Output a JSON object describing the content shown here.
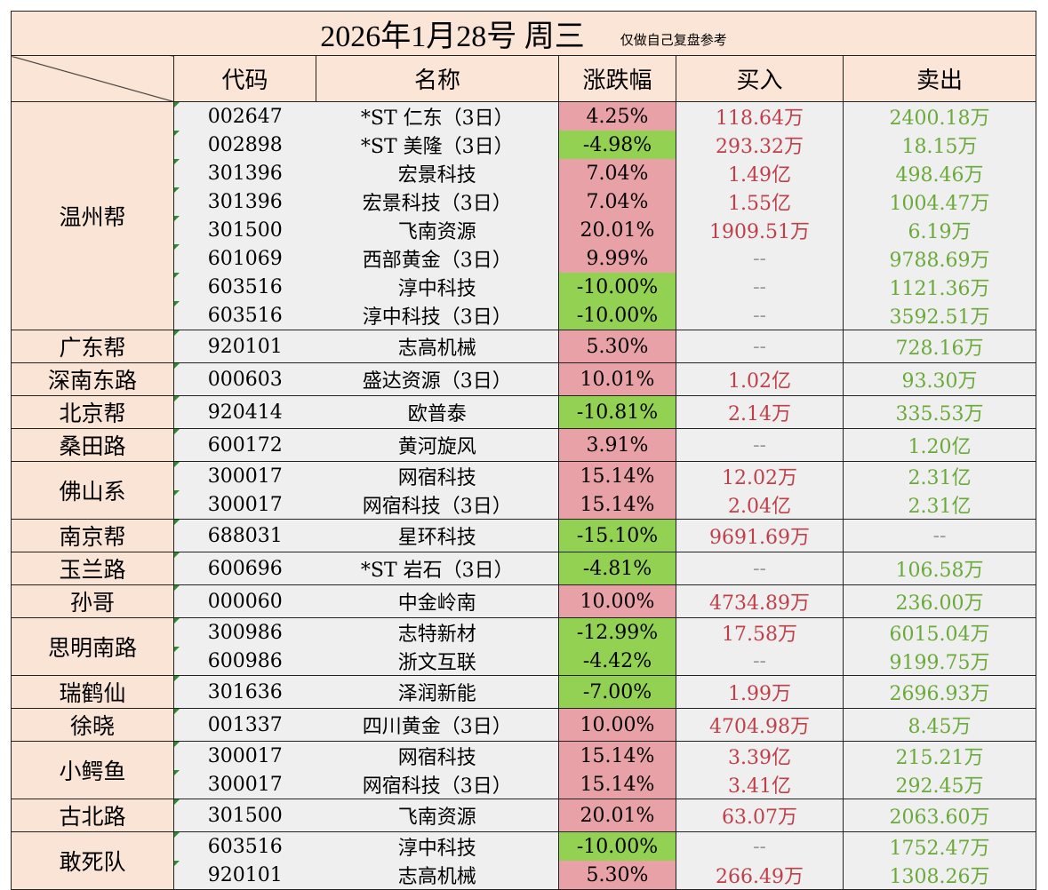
{
  "title": "2026年1月28号 周三",
  "note": "仅做自己复盘参考",
  "headers": {
    "code": "代码",
    "name": "名称",
    "pct": "涨跌幅",
    "buy": "买入",
    "sell": "卖出"
  },
  "colors": {
    "up_bg": "#e8a1a6",
    "down_bg": "#93d152",
    "buy_text": "#c0404a",
    "sell_text": "#6aaa3a",
    "header_bg": "#fbe5d6"
  },
  "groups": [
    {
      "name": "温州帮",
      "rows": [
        {
          "code": "002647",
          "name": "*ST 仁东（3日）",
          "pct": "4.25%",
          "buy": "118.64万",
          "sell": "2400.18万"
        },
        {
          "code": "002898",
          "name": "*ST 美隆（3日）",
          "pct": "-4.98%",
          "buy": "293.32万",
          "sell": "18.15万"
        },
        {
          "code": "301396",
          "name": "宏景科技",
          "pct": "7.04%",
          "buy": "1.49亿",
          "sell": "498.46万"
        },
        {
          "code": "301396",
          "name": "宏景科技（3日）",
          "pct": "7.04%",
          "buy": "1.55亿",
          "sell": "1004.47万"
        },
        {
          "code": "301500",
          "name": "飞南资源",
          "pct": "20.01%",
          "buy": "1909.51万",
          "sell": "6.19万"
        },
        {
          "code": "601069",
          "name": "西部黄金（3日）",
          "pct": "9.99%",
          "buy": "--",
          "sell": "9788.69万"
        },
        {
          "code": "603516",
          "name": "淳中科技",
          "pct": "-10.00%",
          "buy": "--",
          "sell": "1121.36万"
        },
        {
          "code": "603516",
          "name": "淳中科技（3日）",
          "pct": "-10.00%",
          "buy": "--",
          "sell": "3592.51万"
        }
      ]
    },
    {
      "name": "广东帮",
      "rows": [
        {
          "code": "920101",
          "name": "志高机械",
          "pct": "5.30%",
          "buy": "--",
          "sell": "728.16万"
        }
      ]
    },
    {
      "name": "深南东路",
      "rows": [
        {
          "code": "000603",
          "name": "盛达资源（3日）",
          "pct": "10.01%",
          "buy": "1.02亿",
          "sell": "93.30万"
        }
      ]
    },
    {
      "name": "北京帮",
      "rows": [
        {
          "code": "920414",
          "name": "欧普泰",
          "pct": "-10.81%",
          "buy": "2.14万",
          "sell": "335.53万"
        }
      ]
    },
    {
      "name": "桑田路",
      "rows": [
        {
          "code": "600172",
          "name": "黄河旋风",
          "pct": "3.91%",
          "buy": "--",
          "sell": "1.20亿"
        }
      ]
    },
    {
      "name": "佛山系",
      "rows": [
        {
          "code": "300017",
          "name": "网宿科技",
          "pct": "15.14%",
          "buy": "12.02万",
          "sell": "2.31亿"
        },
        {
          "code": "300017",
          "name": "网宿科技（3日）",
          "pct": "15.14%",
          "buy": "2.04亿",
          "sell": "2.31亿"
        }
      ]
    },
    {
      "name": "南京帮",
      "rows": [
        {
          "code": "688031",
          "name": "星环科技",
          "pct": "-15.10%",
          "buy": "9691.69万",
          "sell": "--"
        }
      ]
    },
    {
      "name": "玉兰路",
      "rows": [
        {
          "code": "600696",
          "name": "*ST 岩石（3日）",
          "pct": "-4.81%",
          "buy": "--",
          "sell": "106.58万"
        }
      ]
    },
    {
      "name": "孙哥",
      "rows": [
        {
          "code": "000060",
          "name": "中金岭南",
          "pct": "10.00%",
          "buy": "4734.89万",
          "sell": "236.00万"
        }
      ]
    },
    {
      "name": "思明南路",
      "rows": [
        {
          "code": "300986",
          "name": "志特新材",
          "pct": "-12.99%",
          "buy": "17.58万",
          "sell": "6015.04万"
        },
        {
          "code": "600986",
          "name": "浙文互联",
          "pct": "-4.42%",
          "buy": "--",
          "sell": "9199.75万"
        }
      ]
    },
    {
      "name": "瑞鹤仙",
      "rows": [
        {
          "code": "301636",
          "name": "泽润新能",
          "pct": "-7.00%",
          "buy": "1.99万",
          "sell": "2696.93万"
        }
      ]
    },
    {
      "name": "徐晓",
      "rows": [
        {
          "code": "001337",
          "name": "四川黄金（3日）",
          "pct": "10.00%",
          "buy": "4704.98万",
          "sell": "8.45万"
        }
      ]
    },
    {
      "name": "小鳄鱼",
      "rows": [
        {
          "code": "300017",
          "name": "网宿科技",
          "pct": "15.14%",
          "buy": "3.39亿",
          "sell": "215.21万"
        },
        {
          "code": "300017",
          "name": "网宿科技（3日）",
          "pct": "15.14%",
          "buy": "3.41亿",
          "sell": "292.45万"
        }
      ]
    },
    {
      "name": "古北路",
      "rows": [
        {
          "code": "301500",
          "name": "飞南资源",
          "pct": "20.01%",
          "buy": "63.07万",
          "sell": "2063.60万"
        }
      ]
    },
    {
      "name": "敢死队",
      "rows": [
        {
          "code": "603516",
          "name": "淳中科技",
          "pct": "-10.00%",
          "buy": "--",
          "sell": "1752.47万"
        },
        {
          "code": "920101",
          "name": "志高机械",
          "pct": "5.30%",
          "buy": "266.49万",
          "sell": "1308.26万"
        }
      ]
    }
  ]
}
